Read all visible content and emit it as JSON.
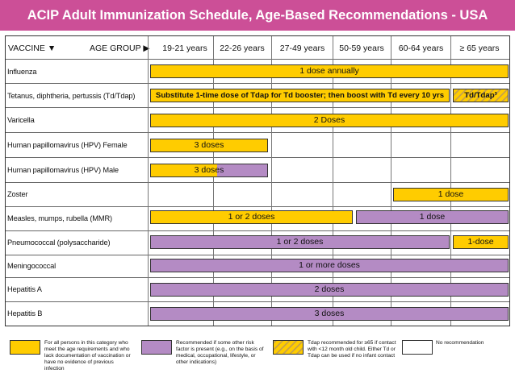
{
  "title": "ACIP Adult Immunization Schedule, Age-Based Recommendations - USA",
  "header": {
    "vaccine": "VACCINE ▼",
    "age_group": "AGE GROUP ▶",
    "ages": [
      "19-21 years",
      "22-26 years",
      "27-49 years",
      "50-59 years",
      "60-64 years",
      "≥ 65 years"
    ]
  },
  "vaccines": [
    "Influenza",
    "Tetanus, diphtheria, pertussis (Td/Tdap)",
    "Varicella",
    "Human papillomavirus (HPV) Female",
    "Human papillomavirus (HPV) Male",
    "Zoster",
    "Measles, mumps, rubella (MMR)",
    "Pneumococcal (polysaccharide)",
    "Meningococcal",
    "Hepatitis A",
    "Hepatitis B"
  ],
  "bars": {
    "influenza": "1 dose annually",
    "tdap_main": "Substitute 1-time dose of Tdap for Td booster; then boost with Td every 10 yrs",
    "tdap_65": "Td/Tdap³",
    "varicella": "2 Doses",
    "hpv_female": "3 doses",
    "hpv_male": "3 doses",
    "zoster": "1 dose",
    "mmr_young": "1 or 2 doses",
    "mmr_older": "1 dose",
    "pneumo_young": "1 or 2 doses",
    "pneumo_65": "1-dose",
    "meningococcal": "1 or more doses",
    "hepa": "2 doses",
    "hepb": "3 doses"
  },
  "legend": [
    {
      "color": "#ffcc00",
      "text": "For all persons in this category who meet the age requirements and who lack documentation of vaccination or have no evidence of previous infection"
    },
    {
      "color": "#b48bc4",
      "text": "Recommended if some other risk factor is present (e.g., on the basis of medical, occupational, lifestyle, or other indications)"
    },
    {
      "color": "hatched",
      "text": "Tdap recommended for ≥65 if contact with <12 month old child. Either Td or Tdap can be used if no infant contact"
    },
    {
      "color": "#ffffff",
      "text": "No recommendation"
    }
  ]
}
